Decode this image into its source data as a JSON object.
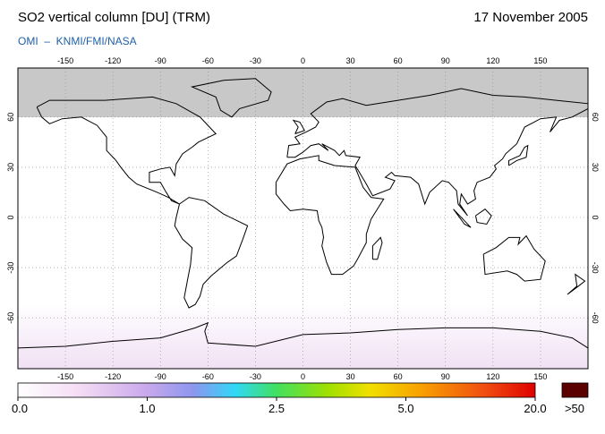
{
  "title": "SO2 vertical column [DU] (TRM)",
  "date": "17 November 2005",
  "subtitle": "OMI  –  KNMI/FMI/NASA",
  "map": {
    "lon_ticks": [
      -150,
      -120,
      -90,
      -60,
      -30,
      0,
      30,
      60,
      90,
      120,
      150
    ],
    "lat_ticks": [
      60,
      30,
      0,
      -30,
      -60
    ]
  },
  "colorbar": {
    "ticks": [
      {
        "value": 0,
        "label": "0.0"
      },
      {
        "value": 1,
        "label": "1.0"
      },
      {
        "value": 2.5,
        "label": "2.5"
      },
      {
        "value": 5,
        "label": "5.0"
      },
      {
        "value": 20,
        "label": "20.0"
      }
    ],
    "overflow_label": ">50"
  }
}
